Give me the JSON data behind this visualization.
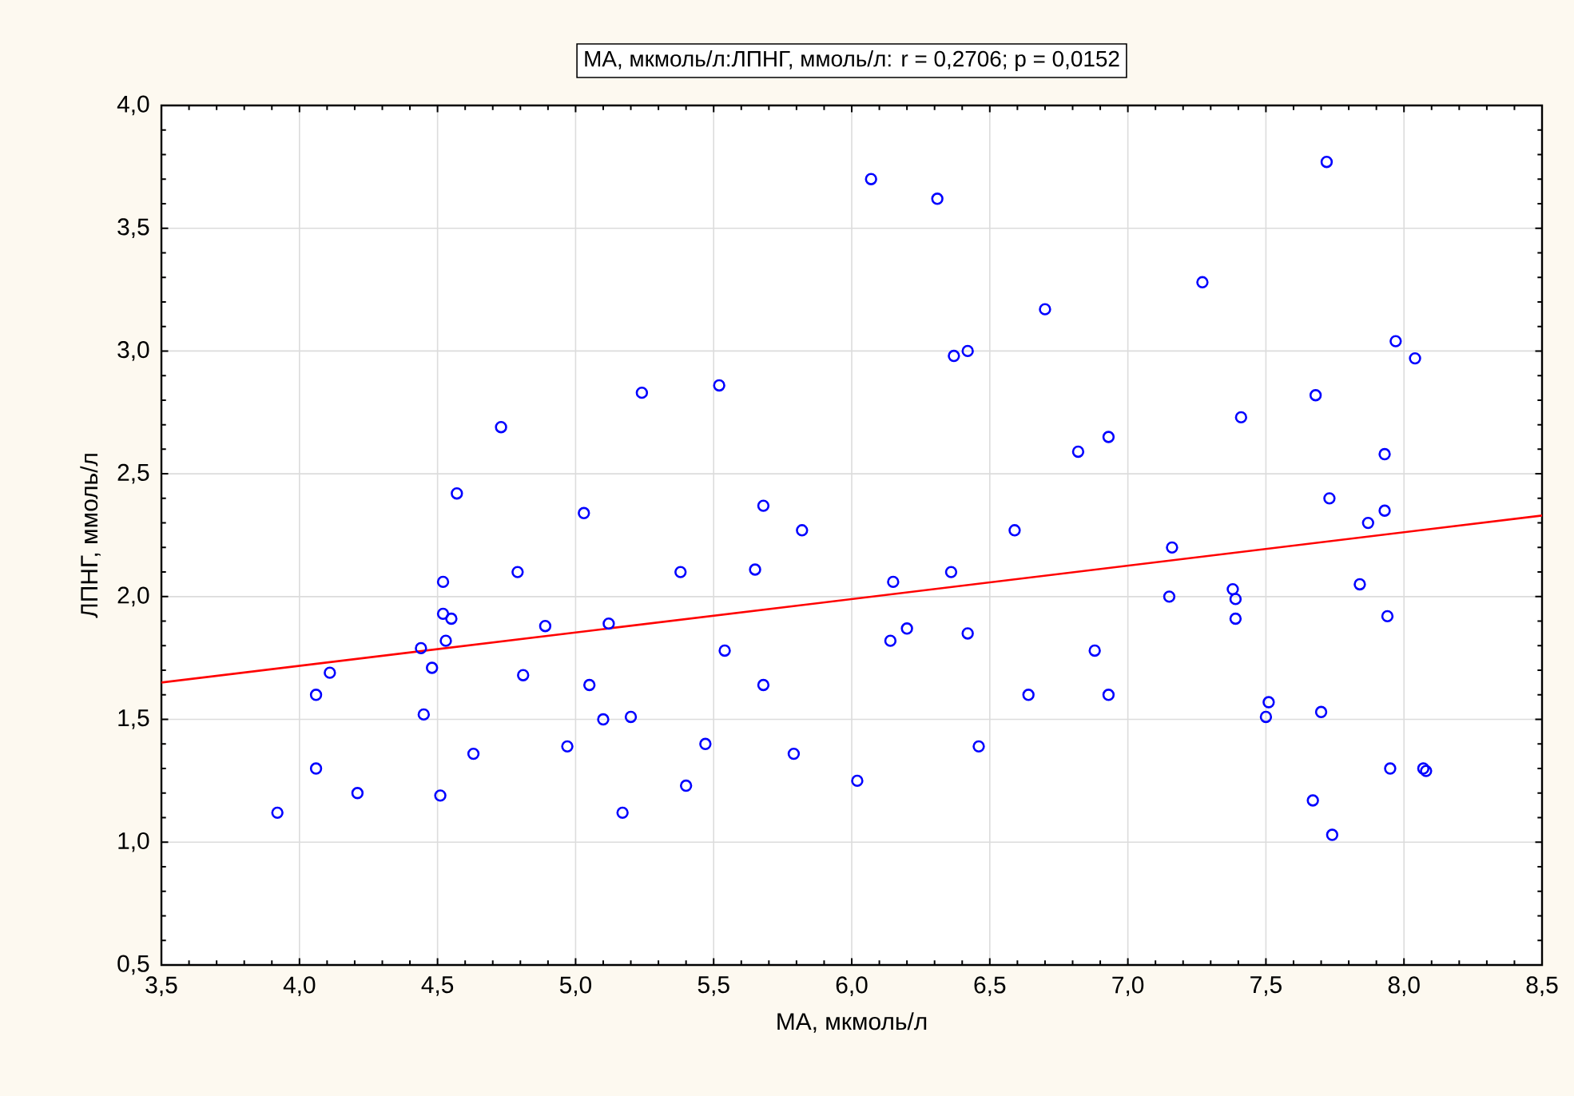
{
  "chart_data": {
    "type": "scatter",
    "title": "МА, мкмоль/л:ЛПНГ, ммоль/л:   r = 0,2706; p = 0,0152",
    "xlabel": "МА, мкмоль/л",
    "ylabel": "ЛПНГ, ммоль/л",
    "xlim": [
      3.5,
      8.5
    ],
    "ylim": [
      0.5,
      4.0
    ],
    "xticks": [
      {
        "value": 3.5,
        "label": "3,5"
      },
      {
        "value": 4.0,
        "label": "4,0"
      },
      {
        "value": 4.5,
        "label": "4,5"
      },
      {
        "value": 5.0,
        "label": "5,0"
      },
      {
        "value": 5.5,
        "label": "5,5"
      },
      {
        "value": 6.0,
        "label": "6,0"
      },
      {
        "value": 6.5,
        "label": "6,5"
      },
      {
        "value": 7.0,
        "label": "7,0"
      },
      {
        "value": 7.5,
        "label": "7,5"
      },
      {
        "value": 8.0,
        "label": "8,0"
      },
      {
        "value": 8.5,
        "label": "8,5"
      }
    ],
    "yticks": [
      {
        "value": 0.5,
        "label": "0,5"
      },
      {
        "value": 1.0,
        "label": "1,0"
      },
      {
        "value": 1.5,
        "label": "1,5"
      },
      {
        "value": 2.0,
        "label": "2,0"
      },
      {
        "value": 2.5,
        "label": "2,5"
      },
      {
        "value": 3.0,
        "label": "3,0"
      },
      {
        "value": 3.5,
        "label": "3,5"
      },
      {
        "value": 4.0,
        "label": "4,0"
      }
    ],
    "grid": true,
    "legend": false,
    "series": [
      {
        "marker": "circle",
        "color": "#0000ff",
        "x": [
          3.92,
          4.06,
          4.06,
          4.11,
          4.21,
          4.44,
          4.45,
          4.48,
          4.51,
          4.52,
          4.52,
          4.53,
          4.55,
          4.57,
          4.63,
          4.73,
          4.79,
          4.81,
          4.89,
          4.97,
          5.03,
          5.05,
          5.1,
          5.12,
          5.17,
          5.2,
          5.24,
          5.38,
          5.4,
          5.47,
          5.52,
          5.54,
          5.65,
          5.68,
          5.68,
          5.79,
          5.82,
          6.02,
          6.07,
          6.14,
          6.15,
          6.2,
          6.31,
          6.36,
          6.37,
          6.42,
          6.42,
          6.46,
          6.59,
          6.64,
          6.7,
          6.82,
          6.88,
          6.93,
          6.93,
          7.15,
          7.16,
          7.27,
          7.38,
          7.39,
          7.39,
          7.41,
          7.51,
          7.5,
          7.67,
          7.68,
          7.7,
          7.72,
          7.73,
          7.74,
          7.84,
          7.87,
          7.93,
          7.93,
          7.94,
          7.95,
          7.97,
          8.04,
          8.07,
          8.08
        ],
        "values": [
          1.12,
          1.3,
          1.6,
          1.69,
          1.2,
          1.79,
          1.52,
          1.71,
          1.19,
          2.06,
          1.93,
          1.82,
          1.91,
          2.42,
          1.36,
          2.69,
          2.1,
          1.68,
          1.88,
          1.39,
          2.34,
          1.64,
          1.5,
          1.89,
          1.12,
          1.51,
          2.83,
          2.1,
          1.23,
          1.4,
          2.86,
          1.78,
          2.11,
          2.37,
          1.64,
          1.36,
          2.27,
          1.25,
          3.7,
          1.82,
          2.06,
          1.87,
          3.62,
          2.1,
          2.98,
          3.0,
          1.85,
          1.39,
          2.27,
          1.6,
          3.17,
          2.59,
          1.78,
          2.65,
          1.6,
          2.0,
          2.2,
          3.28,
          2.03,
          1.99,
          1.91,
          2.73,
          1.57,
          1.51,
          1.17,
          2.82,
          1.53,
          3.77,
          2.4,
          1.03,
          2.05,
          2.3,
          2.58,
          2.35,
          1.92,
          1.3,
          3.04,
          2.97,
          1.3,
          1.29
        ]
      },
      {
        "type": "line",
        "marker": "none",
        "color": "#ff0000",
        "x": [
          3.5,
          8.5
        ],
        "values": [
          1.65,
          2.33
        ]
      }
    ]
  }
}
